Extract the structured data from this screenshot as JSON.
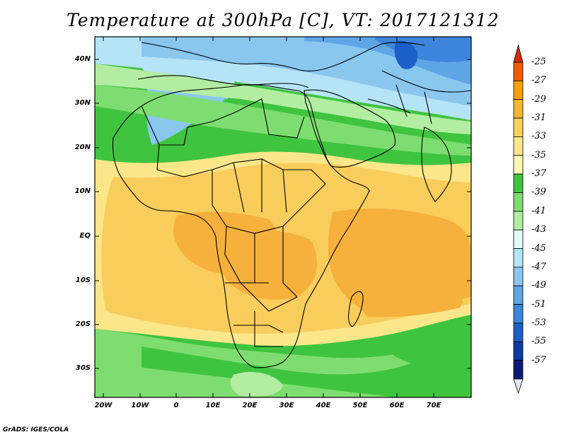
{
  "title": "Temperature at 300hPa [C], VT: 2017121312",
  "footer": "GrADS: IGES/COLA",
  "map": {
    "lat_ticks": [
      "40N",
      "30N",
      "20N",
      "10N",
      "EQ",
      "10S",
      "20S",
      "30S"
    ],
    "lon_ticks": [
      "20W",
      "10W",
      "0",
      "10E",
      "20E",
      "30E",
      "40E",
      "50E",
      "60E",
      "70E"
    ]
  },
  "colorbar": {
    "labels": [
      "-25",
      "-27",
      "-29",
      "-31",
      "-33",
      "-35",
      "-37",
      "-39",
      "-41",
      "-43",
      "-45",
      "-47",
      "-49",
      "-51",
      "-53",
      "-55",
      "-57"
    ],
    "colors": [
      "#d42a0a",
      "#f25c00",
      "#f7a000",
      "#f6b732",
      "#f9d05a",
      "#fbe68a",
      "#fef6b4",
      "#3fc43f",
      "#7edd70",
      "#b2eda2",
      "#e2fbfb",
      "#b5e4f6",
      "#8ac7ef",
      "#5ea5e6",
      "#3d85dc",
      "#1d5fc8",
      "#0e3aa6",
      "#0b1a78",
      "#e6e6fa"
    ]
  },
  "colors": {
    "warm_orange": "#f6b03c",
    "light_orange": "#f9cd5c",
    "pale_yellow": "#fbe68a",
    "green": "#3fc43f",
    "light_green": "#7edd70",
    "pale_green": "#b2eda2",
    "pale_blue": "#b5e4f6",
    "mid_blue": "#6cb2ea",
    "dark_blue": "#1d5fc8"
  }
}
